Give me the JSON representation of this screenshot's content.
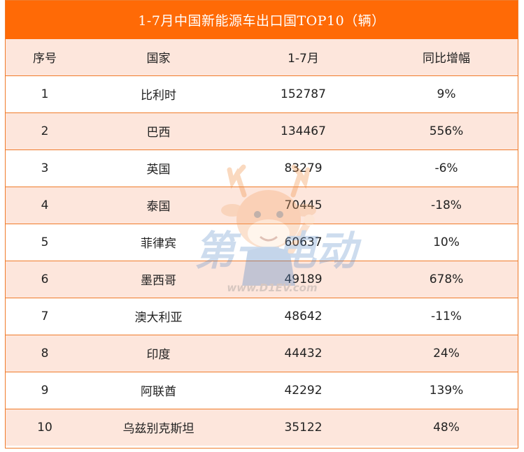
{
  "title": "1-7月中国新能源车出口国TOP10（辆）",
  "headers": [
    "序号",
    "国家",
    "1-7月",
    "同比增幅"
  ],
  "rows": [
    {
      "rank": "1",
      "country": "比利时",
      "volume": "152787",
      "yoy": "9%"
    },
    {
      "rank": "2",
      "country": "巴西",
      "volume": "134467",
      "yoy": "556%"
    },
    {
      "rank": "3",
      "country": "英国",
      "volume": "83279",
      "yoy": "-6%"
    },
    {
      "rank": "4",
      "country": "泰国",
      "volume": "70445",
      "yoy": "-18%"
    },
    {
      "rank": "5",
      "country": "菲律宾",
      "volume": "60637",
      "yoy": "10%"
    },
    {
      "rank": "6",
      "country": "墨西哥",
      "volume": "49189",
      "yoy": "678%"
    },
    {
      "rank": "7",
      "country": "澳大利亚",
      "volume": "48642",
      "yoy": "-11%"
    },
    {
      "rank": "8",
      "country": "印度",
      "volume": "44432",
      "yoy": "24%"
    },
    {
      "rank": "9",
      "country": "阿联酋",
      "volume": "42292",
      "yoy": "139%"
    },
    {
      "rank": "10",
      "country": "乌兹别克斯坦",
      "volume": "35122",
      "yoy": "48%"
    }
  ],
  "watermark": {
    "brand": "第一电动",
    "url": "www.D1EV.com"
  },
  "colors": {
    "header_bar": "#ff6a06",
    "border": "#f07b2a",
    "alt_row": "#fde6dc",
    "text": "#222222"
  }
}
